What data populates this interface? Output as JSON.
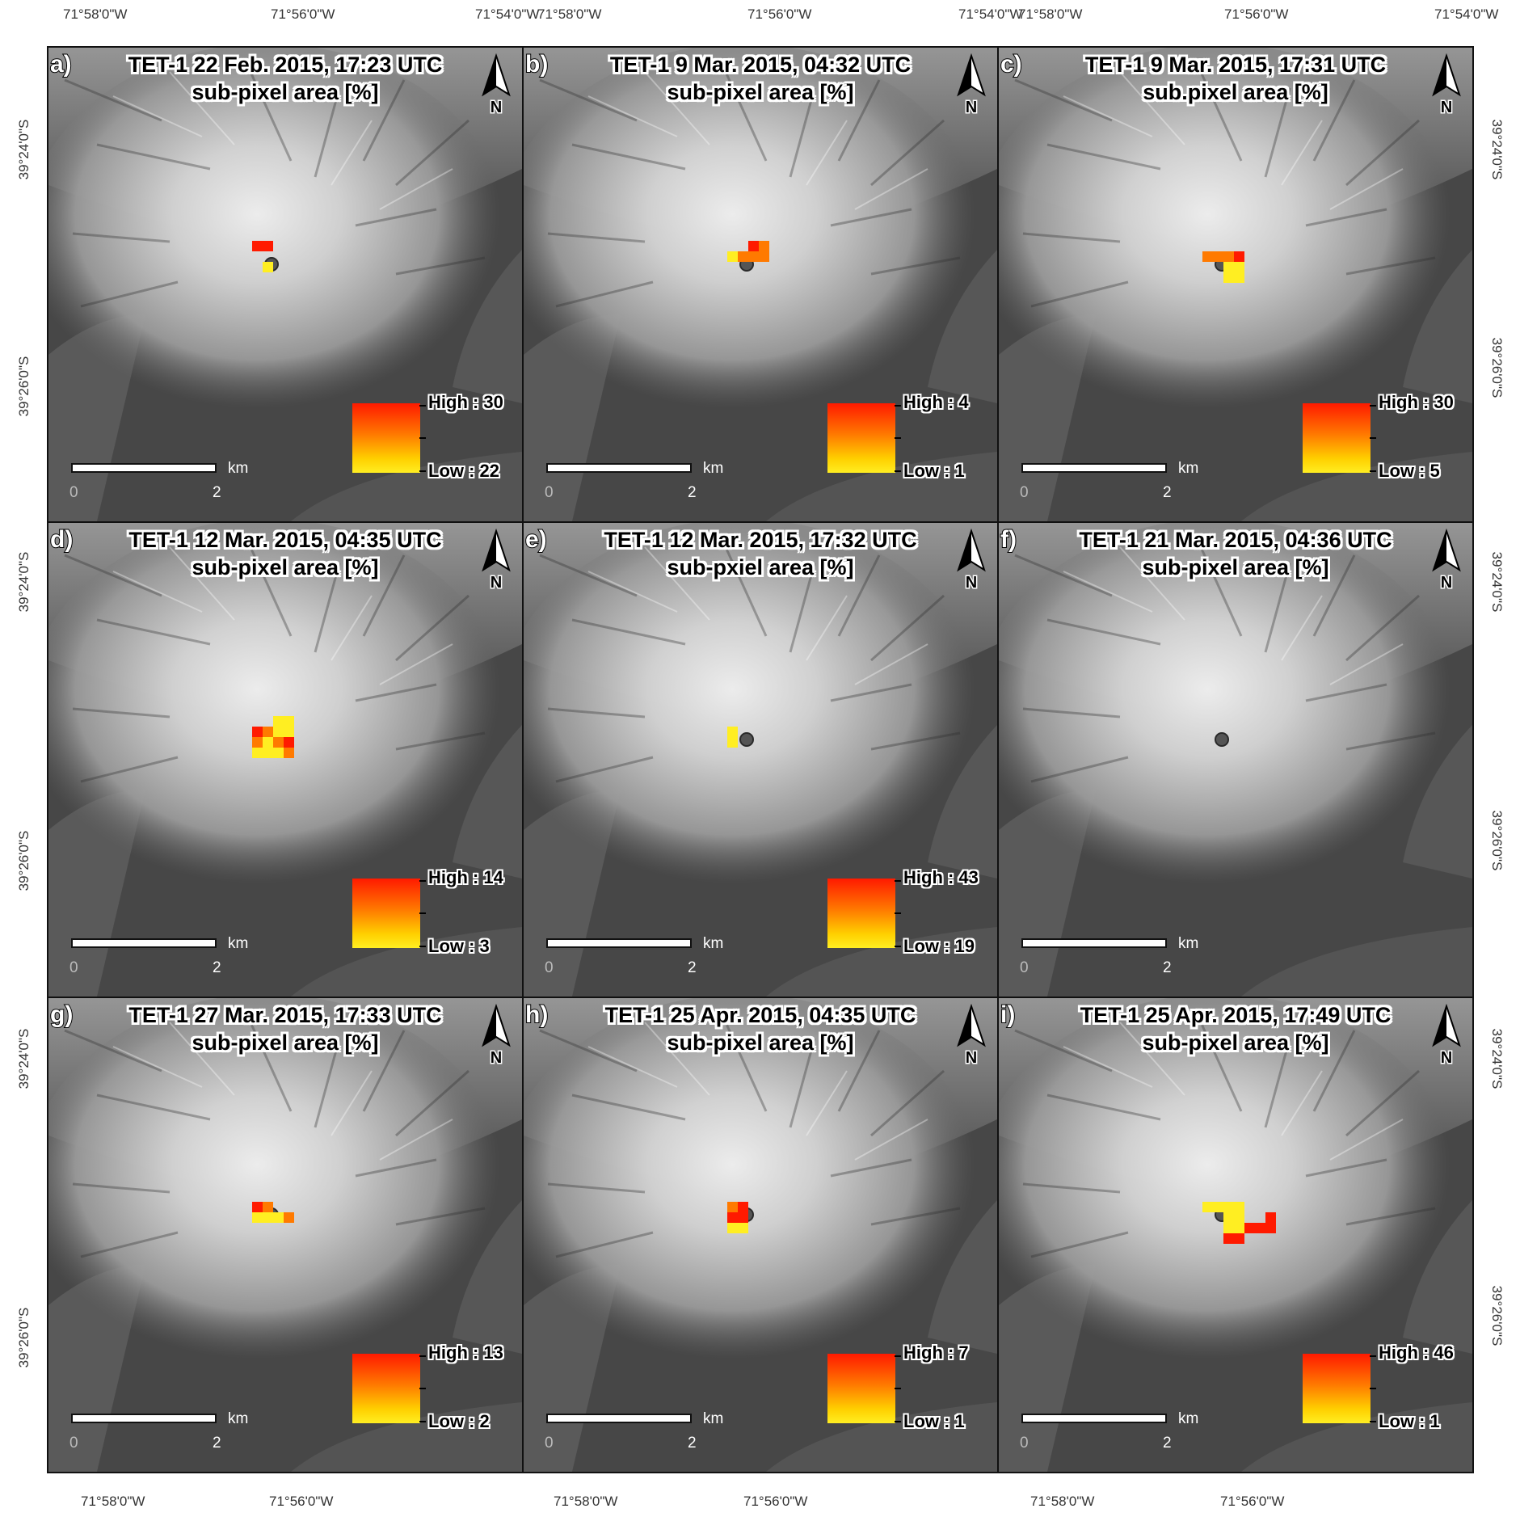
{
  "axes": {
    "top": [
      "71°58'0\"W",
      "71°56'0\"W",
      "71°54'0\"W",
      "71°58'0\"W",
      "71°56'0\"W",
      "71°54'0\"W",
      "71°58'0\"W",
      "71°56'0\"W",
      "71°54'0\"W"
    ],
    "bottom": [
      "71°58'0\"W",
      "71°56'0\"W",
      "71°58'0\"W",
      "71°56'0\"W",
      "71°58'0\"W",
      "71°56'0\"W"
    ],
    "left": [
      "39°24'0\"S",
      "39°26'0\"S",
      "39°24'0\"S",
      "39°26'0\"S",
      "39°24'0\"S",
      "39°26'0\"S"
    ],
    "right": [
      "39°24'0\"S",
      "39°26'0\"S",
      "39°24'0\"S",
      "39°26'0\"S",
      "39°24'0\"S",
      "39°26'0\"S"
    ]
  },
  "colors": {
    "high": "#ff1a00",
    "mid": "#ff7a00",
    "low": "#ffee22",
    "terrain": "#474747"
  },
  "north_arrow_label": "N",
  "scale_bar": {
    "unit": "km",
    "zero": "0",
    "max": "2"
  },
  "panels": [
    {
      "letter": "a)",
      "title": "TET-1 22 Feb. 2015, 17:23 UTC",
      "subtitle": "sub-pixel area [%]",
      "legend_high": "High : 30",
      "legend_low": "Low : 22",
      "pixels": [
        [
          0,
          -1,
          "high"
        ],
        [
          1,
          -1,
          "high"
        ],
        [
          1,
          1,
          "low"
        ]
      ]
    },
    {
      "letter": "b)",
      "title": "TET-1 9 Mar. 2015, 04:32 UTC",
      "subtitle": "sub-pixel area [%]",
      "legend_high": "High : 4",
      "legend_low": "Low : 1",
      "pixels": [
        [
          2,
          -1,
          "high"
        ],
        [
          3,
          -1,
          "mid"
        ],
        [
          0,
          0,
          "low"
        ],
        [
          1,
          0,
          "mid"
        ],
        [
          2,
          0,
          "mid"
        ],
        [
          3,
          0,
          "mid"
        ]
      ]
    },
    {
      "letter": "c)",
      "title": "TET-1 9 Mar. 2015, 17:31 UTC",
      "subtitle": "sub.pixel area [%]",
      "legend_high": "High : 30",
      "legend_low": "Low : 5",
      "pixels": [
        [
          0,
          0,
          "mid"
        ],
        [
          1,
          0,
          "mid"
        ],
        [
          2,
          0,
          "mid"
        ],
        [
          3,
          0,
          "high"
        ],
        [
          2,
          1,
          "low"
        ],
        [
          3,
          1,
          "low"
        ],
        [
          2,
          2,
          "low"
        ],
        [
          3,
          2,
          "low"
        ]
      ]
    },
    {
      "letter": "d)",
      "title": "TET-1 12 Mar. 2015, 04:35 UTC",
      "subtitle": "sub-pixel area [%]",
      "legend_high": "High : 14",
      "legend_low": "Low : 3",
      "pixels": [
        [
          2,
          -1,
          "low"
        ],
        [
          3,
          -1,
          "low"
        ],
        [
          0,
          0,
          "high"
        ],
        [
          1,
          0,
          "mid"
        ],
        [
          2,
          0,
          "low"
        ],
        [
          3,
          0,
          "low"
        ],
        [
          0,
          1,
          "mid"
        ],
        [
          1,
          1,
          "low"
        ],
        [
          2,
          1,
          "mid"
        ],
        [
          3,
          1,
          "high"
        ],
        [
          0,
          2,
          "low"
        ],
        [
          1,
          2,
          "low"
        ],
        [
          2,
          2,
          "low"
        ],
        [
          3,
          2,
          "mid"
        ]
      ]
    },
    {
      "letter": "e)",
      "title": "TET-1 12 Mar. 2015, 17:32 UTC",
      "subtitle": "sub-pxiel area [%]",
      "legend_high": "High : 43",
      "legend_low": "Low : 19",
      "pixels": [
        [
          0,
          0,
          "low"
        ],
        [
          0,
          1,
          "low"
        ]
      ]
    },
    {
      "letter": "f)",
      "title": "TET-1 21 Mar. 2015, 04:36 UTC",
      "subtitle": "sub-pixel area [%]",
      "legend_high": "",
      "legend_low": "",
      "pixels": []
    },
    {
      "letter": "g)",
      "title": "TET-1 27 Mar. 2015, 17:33 UTC",
      "subtitle": "sub-pixel area [%]",
      "legend_high": "High : 13",
      "legend_low": "Low : 2",
      "pixels": [
        [
          0,
          0,
          "high"
        ],
        [
          1,
          0,
          "mid"
        ],
        [
          0,
          1,
          "low"
        ],
        [
          1,
          1,
          "low"
        ],
        [
          2,
          1,
          "low"
        ],
        [
          3,
          1,
          "mid"
        ]
      ]
    },
    {
      "letter": "h)",
      "title": "TET-1 25 Apr. 2015, 04:35 UTC",
      "subtitle": "sub-pixel area [%]",
      "legend_high": "High : 7",
      "legend_low": "Low : 1",
      "pixels": [
        [
          0,
          0,
          "mid"
        ],
        [
          1,
          0,
          "high"
        ],
        [
          0,
          1,
          "high"
        ],
        [
          1,
          1,
          "high"
        ],
        [
          0,
          2,
          "low"
        ],
        [
          1,
          2,
          "low"
        ]
      ]
    },
    {
      "letter": "i)",
      "title": "TET-1 25 Apr. 2015, 17:49 UTC",
      "subtitle": "sub-pixel area [%]",
      "legend_high": "High : 46",
      "legend_low": "Low : 1",
      "pixels": [
        [
          0,
          0,
          "low"
        ],
        [
          1,
          0,
          "low"
        ],
        [
          2,
          0,
          "low"
        ],
        [
          3,
          0,
          "low"
        ],
        [
          2,
          1,
          "low"
        ],
        [
          3,
          1,
          "low"
        ],
        [
          6,
          1,
          "high"
        ],
        [
          2,
          2,
          "low"
        ],
        [
          3,
          2,
          "low"
        ],
        [
          4,
          2,
          "high"
        ],
        [
          5,
          2,
          "high"
        ],
        [
          6,
          2,
          "high"
        ],
        [
          2,
          3,
          "high"
        ],
        [
          3,
          3,
          "high"
        ]
      ]
    }
  ]
}
